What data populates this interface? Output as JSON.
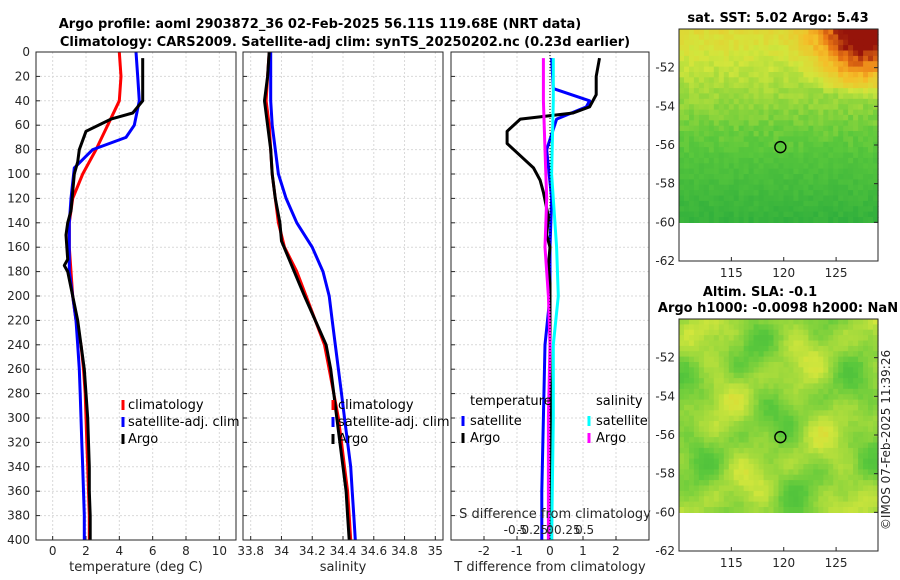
{
  "header": {
    "line1": "Argo profile: aoml 2903872_36 02-Feb-2025 56.11S 119.68E (NRT data)",
    "line2": "Climatology: CARS2009. Satellite-adj clim: synTS_20250202.nc (0.23d earlier)"
  },
  "stamp": "©IMOS 07-Feb-2025 11:39:26",
  "colors": {
    "climatology": "#ff0000",
    "satellite": "#0000ff",
    "argo": "#000000",
    "argo_sal": "#ff00ff",
    "sat_sal": "#00ffff"
  },
  "depth_ticks": [
    "0",
    "20",
    "40",
    "60",
    "80",
    "100",
    "120",
    "140",
    "160",
    "180",
    "200",
    "220",
    "240",
    "260",
    "280",
    "300",
    "320",
    "340",
    "360",
    "380",
    "400"
  ],
  "chart_data": [
    {
      "type": "line",
      "name": "temperature profile",
      "xlabel": "temperature (deg C)",
      "ylabel": "depth",
      "xlim": [
        -1,
        11
      ],
      "ylim": [
        0,
        400
      ],
      "xticks": [
        "0",
        "2",
        "4",
        "6",
        "8",
        "10"
      ],
      "legend": [
        "climatology",
        "satellite-adj. clim",
        "Argo"
      ],
      "series": [
        {
          "name": "climatology",
          "color": "red",
          "points": [
            [
              4.0,
              0
            ],
            [
              4.1,
              20
            ],
            [
              4.0,
              40
            ],
            [
              3.3,
              60
            ],
            [
              2.6,
              80
            ],
            [
              1.8,
              100
            ],
            [
              1.2,
              120
            ],
            [
              1.0,
              140
            ],
            [
              1.0,
              160
            ],
            [
              1.1,
              180
            ],
            [
              1.2,
              200
            ],
            [
              1.4,
              220
            ],
            [
              1.7,
              240
            ],
            [
              1.85,
              260
            ],
            [
              1.95,
              280
            ],
            [
              2.0,
              300
            ],
            [
              2.05,
              320
            ],
            [
              2.1,
              340
            ],
            [
              2.15,
              360
            ],
            [
              2.2,
              380
            ],
            [
              2.2,
              400
            ]
          ]
        },
        {
          "name": "satellite-adj. clim",
          "color": "blue",
          "points": [
            [
              5.0,
              0
            ],
            [
              5.1,
              20
            ],
            [
              5.2,
              40
            ],
            [
              4.9,
              60
            ],
            [
              4.4,
              70
            ],
            [
              2.4,
              80
            ],
            [
              1.3,
              95
            ],
            [
              1.1,
              120
            ],
            [
              1.0,
              140
            ],
            [
              1.0,
              160
            ],
            [
              1.0,
              180
            ],
            [
              1.2,
              200
            ],
            [
              1.4,
              220
            ],
            [
              1.5,
              240
            ],
            [
              1.6,
              260
            ],
            [
              1.65,
              280
            ],
            [
              1.7,
              300
            ],
            [
              1.75,
              320
            ],
            [
              1.8,
              340
            ],
            [
              1.85,
              360
            ],
            [
              1.9,
              380
            ],
            [
              1.9,
              400
            ]
          ]
        },
        {
          "name": "Argo",
          "color": "black",
          "points": [
            [
              5.4,
              5
            ],
            [
              5.4,
              20
            ],
            [
              5.4,
              40
            ],
            [
              4.8,
              50
            ],
            [
              3.5,
              55
            ],
            [
              2.0,
              65
            ],
            [
              1.6,
              80
            ],
            [
              1.5,
              90
            ],
            [
              1.3,
              100
            ],
            [
              1.1,
              130
            ],
            [
              0.9,
              140
            ],
            [
              0.8,
              150
            ],
            [
              0.9,
              170
            ],
            [
              0.7,
              175
            ],
            [
              0.9,
              180
            ],
            [
              1.2,
              200
            ],
            [
              1.5,
              220
            ],
            [
              1.7,
              240
            ],
            [
              1.9,
              260
            ],
            [
              2.0,
              280
            ],
            [
              2.1,
              300
            ],
            [
              2.15,
              320
            ],
            [
              2.2,
              340
            ],
            [
              2.2,
              360
            ],
            [
              2.25,
              380
            ],
            [
              2.25,
              400
            ]
          ]
        }
      ]
    },
    {
      "type": "line",
      "name": "salinity profile",
      "xlabel": "salinity",
      "ylabel": "depth",
      "xlim": [
        33.75,
        35.05
      ],
      "ylim": [
        0,
        400
      ],
      "xticks": [
        "33.8",
        "34",
        "34.2",
        "34.4",
        "34.6",
        "34.8",
        "35"
      ],
      "legend": [
        "climatology",
        "satellite-adj. clim",
        "Argo"
      ],
      "series": [
        {
          "name": "climatology",
          "color": "red",
          "points": [
            [
              33.92,
              0
            ],
            [
              33.91,
              20
            ],
            [
              33.9,
              40
            ],
            [
              33.92,
              60
            ],
            [
              33.93,
              80
            ],
            [
              33.94,
              100
            ],
            [
              33.96,
              120
            ],
            [
              33.98,
              140
            ],
            [
              34.02,
              160
            ],
            [
              34.1,
              180
            ],
            [
              34.16,
              200
            ],
            [
              34.22,
              220
            ],
            [
              34.28,
              240
            ],
            [
              34.31,
              260
            ],
            [
              34.34,
              280
            ],
            [
              34.37,
              300
            ],
            [
              34.39,
              320
            ],
            [
              34.41,
              340
            ],
            [
              34.43,
              360
            ],
            [
              34.44,
              380
            ],
            [
              34.45,
              400
            ]
          ]
        },
        {
          "name": "satellite-adj. clim",
          "color": "blue",
          "points": [
            [
              33.93,
              0
            ],
            [
              33.93,
              20
            ],
            [
              33.93,
              40
            ],
            [
              33.94,
              60
            ],
            [
              33.96,
              80
            ],
            [
              33.98,
              100
            ],
            [
              34.03,
              120
            ],
            [
              34.1,
              140
            ],
            [
              34.2,
              160
            ],
            [
              34.27,
              180
            ],
            [
              34.31,
              200
            ],
            [
              34.33,
              220
            ],
            [
              34.35,
              240
            ],
            [
              34.37,
              260
            ],
            [
              34.39,
              280
            ],
            [
              34.41,
              300
            ],
            [
              34.43,
              320
            ],
            [
              34.45,
              340
            ],
            [
              34.46,
              360
            ],
            [
              34.47,
              380
            ],
            [
              34.48,
              400
            ]
          ]
        },
        {
          "name": "Argo",
          "color": "black",
          "points": [
            [
              33.92,
              0
            ],
            [
              33.91,
              20
            ],
            [
              33.89,
              40
            ],
            [
              33.91,
              60
            ],
            [
              33.93,
              80
            ],
            [
              33.94,
              100
            ],
            [
              33.96,
              120
            ],
            [
              33.99,
              140
            ],
            [
              34.0,
              155
            ],
            [
              34.05,
              170
            ],
            [
              34.1,
              185
            ],
            [
              34.15,
              200
            ],
            [
              34.22,
              220
            ],
            [
              34.29,
              240
            ],
            [
              34.32,
              260
            ],
            [
              34.34,
              280
            ],
            [
              34.36,
              300
            ],
            [
              34.38,
              320
            ],
            [
              34.4,
              340
            ],
            [
              34.42,
              360
            ],
            [
              34.43,
              380
            ],
            [
              34.44,
              400
            ]
          ]
        }
      ]
    },
    {
      "type": "line",
      "name": "difference from climatology",
      "xlabel": "T difference from climatology",
      "x2label": "S difference from climatology",
      "ylabel": "depth",
      "xlim": [
        -3,
        3
      ],
      "ylim": [
        0,
        400
      ],
      "xticks": [
        "-2",
        "-1",
        "0",
        "1",
        "2"
      ],
      "x2ticks": [
        "-0.5",
        "-0.25",
        "0",
        "0.25",
        "0.5"
      ],
      "legend_temperature_title": "temperature",
      "legend_salinity_title": "salinity",
      "legend": [
        "satellite",
        "Argo",
        "satellite",
        "Argo"
      ],
      "series": [
        {
          "name": "T satellite",
          "color": "blue",
          "points": [
            [
              0.05,
              5
            ],
            [
              0.1,
              30
            ],
            [
              1.2,
              40
            ],
            [
              1.1,
              45
            ],
            [
              0.2,
              55
            ],
            [
              -0.1,
              80
            ],
            [
              0.05,
              120
            ],
            [
              0.0,
              160
            ],
            [
              0.0,
              200
            ],
            [
              -0.15,
              240
            ],
            [
              -0.2,
              300
            ],
            [
              -0.25,
              360
            ],
            [
              -0.25,
              400
            ]
          ]
        },
        {
          "name": "T Argo",
          "color": "black",
          "points": [
            [
              1.5,
              5
            ],
            [
              1.4,
              20
            ],
            [
              1.4,
              35
            ],
            [
              1.2,
              45
            ],
            [
              0.7,
              50
            ],
            [
              -0.9,
              55
            ],
            [
              -1.3,
              65
            ],
            [
              -1.3,
              75
            ],
            [
              -0.9,
              85
            ],
            [
              -0.5,
              95
            ],
            [
              -0.3,
              105
            ],
            [
              -0.2,
              115
            ],
            [
              -0.05,
              135
            ],
            [
              -0.1,
              150
            ],
            [
              0.0,
              160
            ],
            [
              -0.05,
              175
            ],
            [
              0.0,
              190
            ],
            [
              0.0,
              220
            ],
            [
              0.0,
              260
            ],
            [
              0.05,
              300
            ],
            [
              0.05,
              340
            ],
            [
              0.05,
              400
            ]
          ]
        },
        {
          "name": "S satellite",
          "color": "cyan",
          "points": [
            [
              0.1,
              5
            ],
            [
              0.1,
              40
            ],
            [
              0.05,
              100
            ],
            [
              0.2,
              160
            ],
            [
              0.25,
              200
            ],
            [
              0.1,
              240
            ],
            [
              0.1,
              300
            ],
            [
              0.05,
              400
            ]
          ]
        },
        {
          "name": "S Argo",
          "color": "magenta",
          "points": [
            [
              -0.2,
              5
            ],
            [
              -0.2,
              40
            ],
            [
              -0.15,
              80
            ],
            [
              -0.1,
              120
            ],
            [
              -0.15,
              160
            ],
            [
              -0.05,
              200
            ],
            [
              0.0,
              240
            ],
            [
              -0.05,
              300
            ],
            [
              -0.05,
              400
            ]
          ]
        }
      ]
    },
    {
      "type": "heatmap",
      "name": "sat. SST map",
      "title": "sat. SST: 5.02 Argo: 5.43",
      "xlim": [
        110,
        129
      ],
      "ylim": [
        -62,
        -50
      ],
      "xticks": [
        "115",
        "120",
        "125"
      ],
      "yticks": [
        "-52",
        "-54",
        "-56",
        "-58",
        "-60",
        "-62"
      ],
      "marker": {
        "lon": 119.68,
        "lat": -56.11
      }
    },
    {
      "type": "heatmap",
      "name": "altimetry SLA map",
      "title": "Altim. SLA: -0.1",
      "title2": "Argo h1000: -0.0098 h2000: NaN",
      "xlim": [
        110,
        129
      ],
      "ylim": [
        -62,
        -50
      ],
      "xticks": [
        "115",
        "120",
        "125"
      ],
      "yticks": [
        "-52",
        "-54",
        "-56",
        "-58",
        "-60",
        "-62"
      ],
      "marker": {
        "lon": 119.68,
        "lat": -56.11
      }
    }
  ]
}
